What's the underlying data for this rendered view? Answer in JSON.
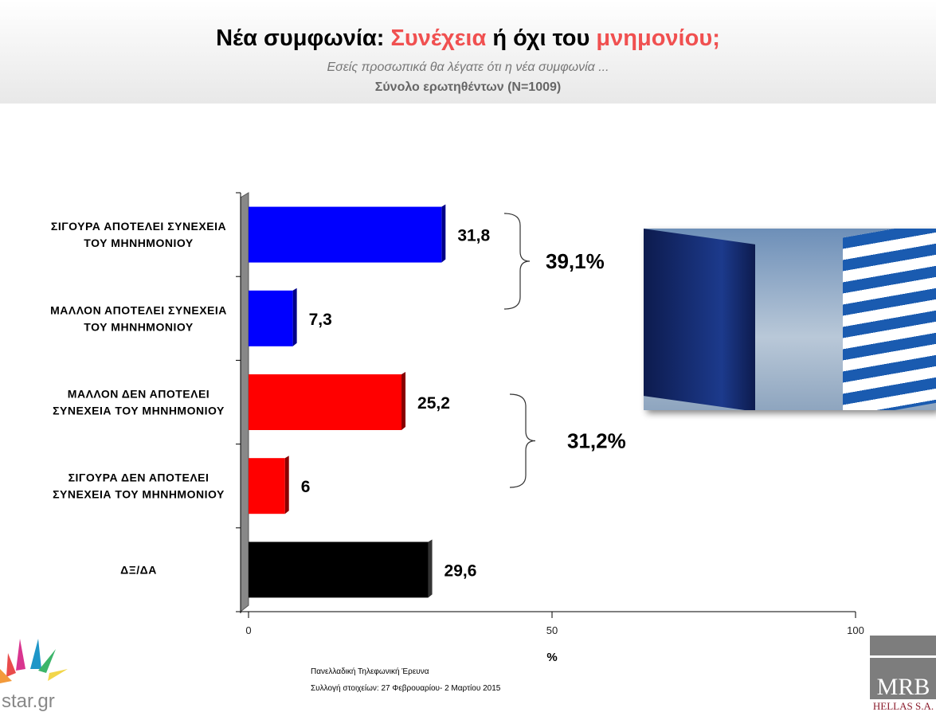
{
  "header": {
    "title_part1": "Νέα συμφωνία: ",
    "title_part2": "Συνέχεια",
    "title_part3": " ή όχι του ",
    "title_part4": "μνημονίου;",
    "subtitle": "Εσείς προσωπικά θα λέγατε ότι η νέα συμφωνία ...",
    "base": "Σύνολο ερωτηθέντων (N=1009)"
  },
  "chart_data": {
    "type": "bar",
    "orientation": "horizontal",
    "categories": [
      [
        "ΣΙΓΟΥΡΑ ΑΠΟΤΕΛΕΙ ΣΥΝΕΧΕΙΑ",
        "ΤΟΥ ΜΗΝΗΜΟΝΙΟΥ"
      ],
      [
        "ΜΑΛΛΟΝ ΑΠΟΤΕΛΕΙ ΣΥΝΕΧΕΙΑ",
        "ΤΟΥ ΜΗΝΗΜΟΝΙΟΥ"
      ],
      [
        "ΜΑΛΛΟΝ ΔΕΝ ΑΠΟΤΕΛΕΙ",
        "ΣΥΝΕΧΕΙΑ ΤΟΥ ΜΗΝΗΜΟΝΙΟΥ"
      ],
      [
        "ΣΙΓΟΥΡΑ ΔΕΝ ΑΠΟΤΕΛΕΙ",
        "ΣΥΝΕΧΕΙΑ ΤΟΥ ΜΗΝΗΜΟΝΙΟΥ"
      ],
      [
        "ΔΞ/ΔΑ"
      ]
    ],
    "values": [
      31.8,
      7.3,
      25.2,
      6,
      29.6
    ],
    "value_labels": [
      "31,8",
      "7,3",
      "25,2",
      "6",
      "29,6"
    ],
    "colors": [
      "#0000ff",
      "#0000ff",
      "#ff0000",
      "#ff0000",
      "#000000"
    ],
    "xlim": [
      0,
      100
    ],
    "xticks": [
      "0",
      "50",
      "100"
    ],
    "xlabel": "%",
    "groups": [
      {
        "label": "39,1%",
        "rows": [
          0,
          1
        ]
      },
      {
        "label": "31,2%",
        "rows": [
          2,
          3
        ]
      }
    ]
  },
  "footer": {
    "survey": "Πανελλαδική  Τηλεφωνική Έρευνα",
    "dates": "Συλλογή στοιχείων: 27 Φεβρουαρίου- 2 Μαρτίου  2015",
    "logo_left": "star.gr",
    "logo_right": "MRB",
    "logo_right_sub": "HELLAS S.A."
  }
}
